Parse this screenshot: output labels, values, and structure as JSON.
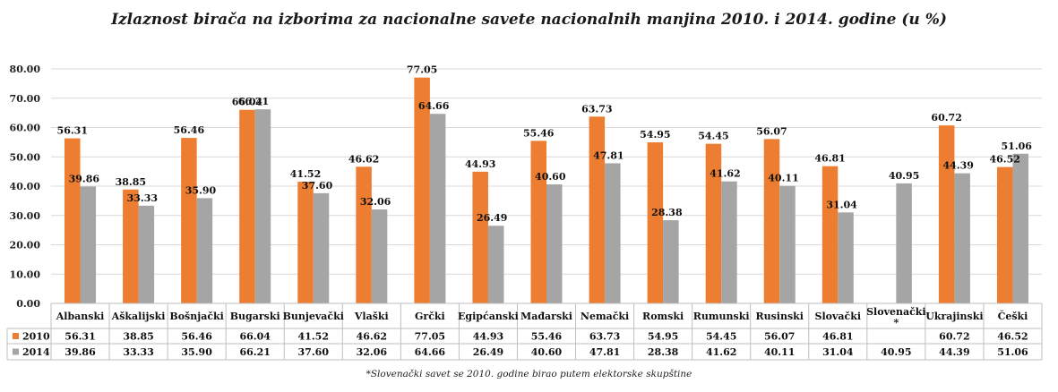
{
  "chart_data": {
    "type": "bar",
    "title": "Izlaznost birača na izborima za nacionalne savete nacionalnih manjina 2010. i 2014. godine (u %)",
    "categories": [
      "Albanski",
      "Aškalijski",
      "Bošnjački",
      "Bugarski",
      "Bunjevački",
      "Vlaški",
      "Grčki",
      "Egipćanski",
      "Mađarski",
      "Nemački",
      "Romski",
      "Rumunski",
      "Rusinski",
      "Slovački",
      "Slovenački *",
      "Ukrajinski",
      "Češki"
    ],
    "series": [
      {
        "name": "2010",
        "color": "#ED7D31",
        "values": [
          56.31,
          38.85,
          56.46,
          66.04,
          41.52,
          46.62,
          77.05,
          44.93,
          55.46,
          63.73,
          54.95,
          54.45,
          56.07,
          46.81,
          null,
          60.72,
          46.52
        ],
        "labels": [
          "56.31",
          "38.85",
          "56.46",
          "66.04",
          "41.52",
          "46.62",
          "77.05",
          "44.93",
          "55.46",
          "63.73",
          "54.95",
          "54.45",
          "56.07",
          "46.81",
          "",
          "60.72",
          "46.52"
        ]
      },
      {
        "name": "2014",
        "color": "#A5A5A5",
        "values": [
          39.86,
          33.33,
          35.9,
          66.21,
          37.6,
          32.06,
          64.66,
          26.49,
          40.6,
          47.81,
          28.38,
          41.62,
          40.11,
          31.04,
          40.95,
          44.39,
          51.06
        ],
        "labels": [
          "39.86",
          "33.33",
          "35.90",
          "66.21",
          "37.60",
          "32.06",
          "64.66",
          "26.49",
          "40.60",
          "47.81",
          "28.38",
          "41.62",
          "40.11",
          "31.04",
          "40.95",
          "44.39",
          "51.06"
        ]
      }
    ],
    "ylim": [
      0,
      80
    ],
    "yticks": [
      "0.00",
      "10.00",
      "20.00",
      "30.00",
      "40.00",
      "50.00",
      "60.00",
      "70.00",
      "80.00"
    ],
    "grid": true,
    "legend": "data-table",
    "footnote": "*Slovenački savet se 2010. godine birao putem elektorske skupštine"
  }
}
